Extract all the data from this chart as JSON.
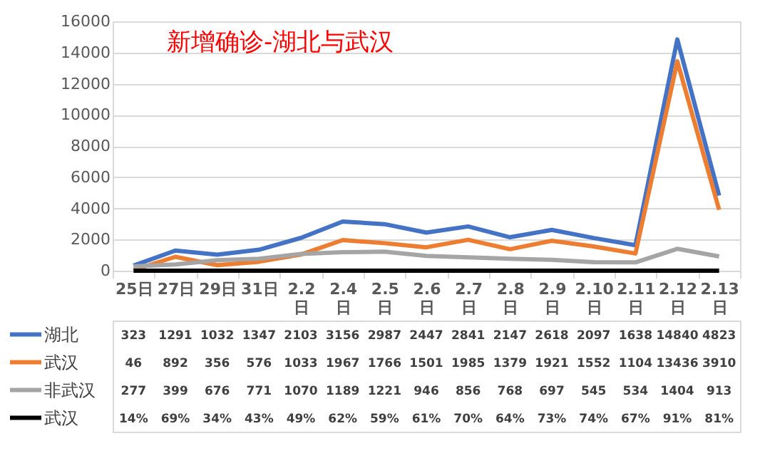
{
  "chart_data": {
    "type": "line",
    "title": "新增确诊-湖北与武汉",
    "categories": [
      "25日",
      "27日",
      "29日",
      "31日",
      "2.2日",
      "2.4日",
      "2.5日",
      "2.6日",
      "2.7日",
      "2.8日",
      "2.9日",
      "2.10日",
      "2.11日",
      "2.12日",
      "2.13日"
    ],
    "series": [
      {
        "name": "湖北",
        "color": "#4472c4",
        "values": [
          323,
          1291,
          1032,
          1347,
          2103,
          3156,
          2987,
          2447,
          2841,
          2147,
          2618,
          2097,
          1638,
          14840,
          4823
        ],
        "value_labels": [
          "323",
          "1291",
          "1032",
          "1347",
          "2103",
          "3156",
          "2987",
          "2447",
          "2841",
          "2147",
          "2618",
          "2097",
          "1638",
          "14840",
          "4823"
        ]
      },
      {
        "name": "武汉",
        "color": "#ed7d31",
        "values": [
          46,
          892,
          356,
          576,
          1033,
          1967,
          1766,
          1501,
          1985,
          1379,
          1921,
          1552,
          1104,
          13436,
          3910
        ],
        "value_labels": [
          "46",
          "892",
          "356",
          "576",
          "1033",
          "1967",
          "1766",
          "1501",
          "1985",
          "1379",
          "1921",
          "1552",
          "1104",
          "13436",
          "3910"
        ]
      },
      {
        "name": "非武汉",
        "color": "#a5a5a5",
        "values": [
          277,
          399,
          676,
          771,
          1070,
          1189,
          1221,
          946,
          856,
          768,
          697,
          545,
          534,
          1404,
          913
        ],
        "value_labels": [
          "277",
          "399",
          "676",
          "771",
          "1070",
          "1189",
          "1221",
          "946",
          "856",
          "768",
          "697",
          "545",
          "534",
          "1404",
          "913"
        ]
      },
      {
        "name": "武汉",
        "color": "#000000",
        "values": [
          0.14,
          0.69,
          0.34,
          0.43,
          0.49,
          0.62,
          0.59,
          0.61,
          0.7,
          0.64,
          0.73,
          0.74,
          0.67,
          0.91,
          0.81
        ],
        "value_labels": [
          "14%",
          "69%",
          "34%",
          "43%",
          "49%",
          "62%",
          "59%",
          "61%",
          "70%",
          "64%",
          "73%",
          "74%",
          "67%",
          "91%",
          "81%"
        ]
      }
    ],
    "ylim": [
      0,
      16000
    ],
    "yticks": [
      0,
      2000,
      4000,
      6000,
      8000,
      10000,
      12000,
      14000,
      16000
    ],
    "grid": "y",
    "legend": "bottom",
    "line_style": "solid",
    "marker": "none"
  }
}
